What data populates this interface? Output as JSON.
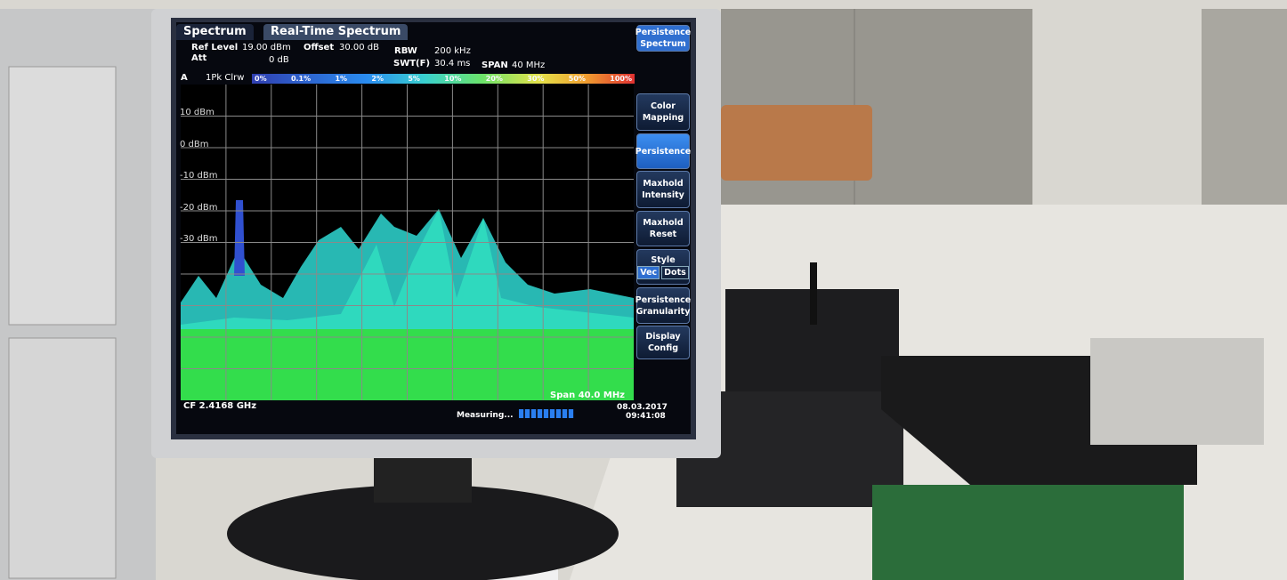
{
  "screen": {
    "tabs": [
      "Spectrum",
      "Real-Time Spectrum"
    ],
    "settings": {
      "ref_level_label": "Ref Level",
      "ref_level": "19.00 dBm",
      "offset_label": "Offset",
      "offset": "30.00 dB",
      "rbw_label": "RBW",
      "rbw": "200 kHz",
      "att_label": "Att",
      "att": "0 dB",
      "swt_label": "SWT(F)",
      "swt": "30.4 ms",
      "span_label": "SPAN",
      "span": "40 MHz"
    },
    "trace": {
      "window": "A",
      "label": "1Pk Clrw"
    },
    "color_scale": [
      "0%",
      "0.1%",
      "1%",
      "2%",
      "5%",
      "10%",
      "20%",
      "30%",
      "50%",
      "100%"
    ],
    "y_labels": [
      "10 dBm",
      "0 dBm",
      "-10 dBm",
      "-20 dBm",
      "-30 dBm"
    ],
    "footer": {
      "center_freq": "CF 2.4168 GHz",
      "span": "Span 40.0 MHz",
      "status": "Measuring...",
      "date": "08.03.2017",
      "time": "09:41:08"
    },
    "softkeys": [
      "Persistence Spectrum",
      "Color Mapping",
      "Persistence",
      "Maxhold Intensity",
      "Maxhold Reset",
      "Style",
      "Persistence Granularity",
      "Display Config"
    ],
    "style_options": [
      "Vec",
      "Dots"
    ]
  }
}
